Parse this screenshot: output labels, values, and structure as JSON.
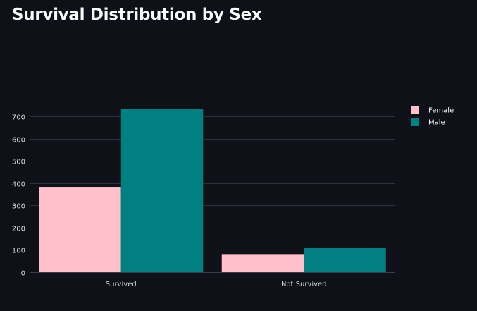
{
  "title": "Survival Distribution by Sex",
  "colors": {
    "background": "#0e1117",
    "grid": "#2c313c",
    "text": "#fafafa",
    "tick_text": "#d6d6d6"
  },
  "chart_data": {
    "type": "bar",
    "categories": [
      "Survived",
      "Not Survived"
    ],
    "series": [
      {
        "name": "Female",
        "color": "#ffc0cb",
        "values": [
          383,
          80
        ]
      },
      {
        "name": "Male",
        "color": "#008080",
        "values": [
          734,
          108
        ]
      }
    ],
    "ylim": [
      0,
      740
    ],
    "yticks": [
      0,
      100,
      200,
      300,
      400,
      500,
      600,
      700
    ],
    "grid": true,
    "legend": "right"
  }
}
